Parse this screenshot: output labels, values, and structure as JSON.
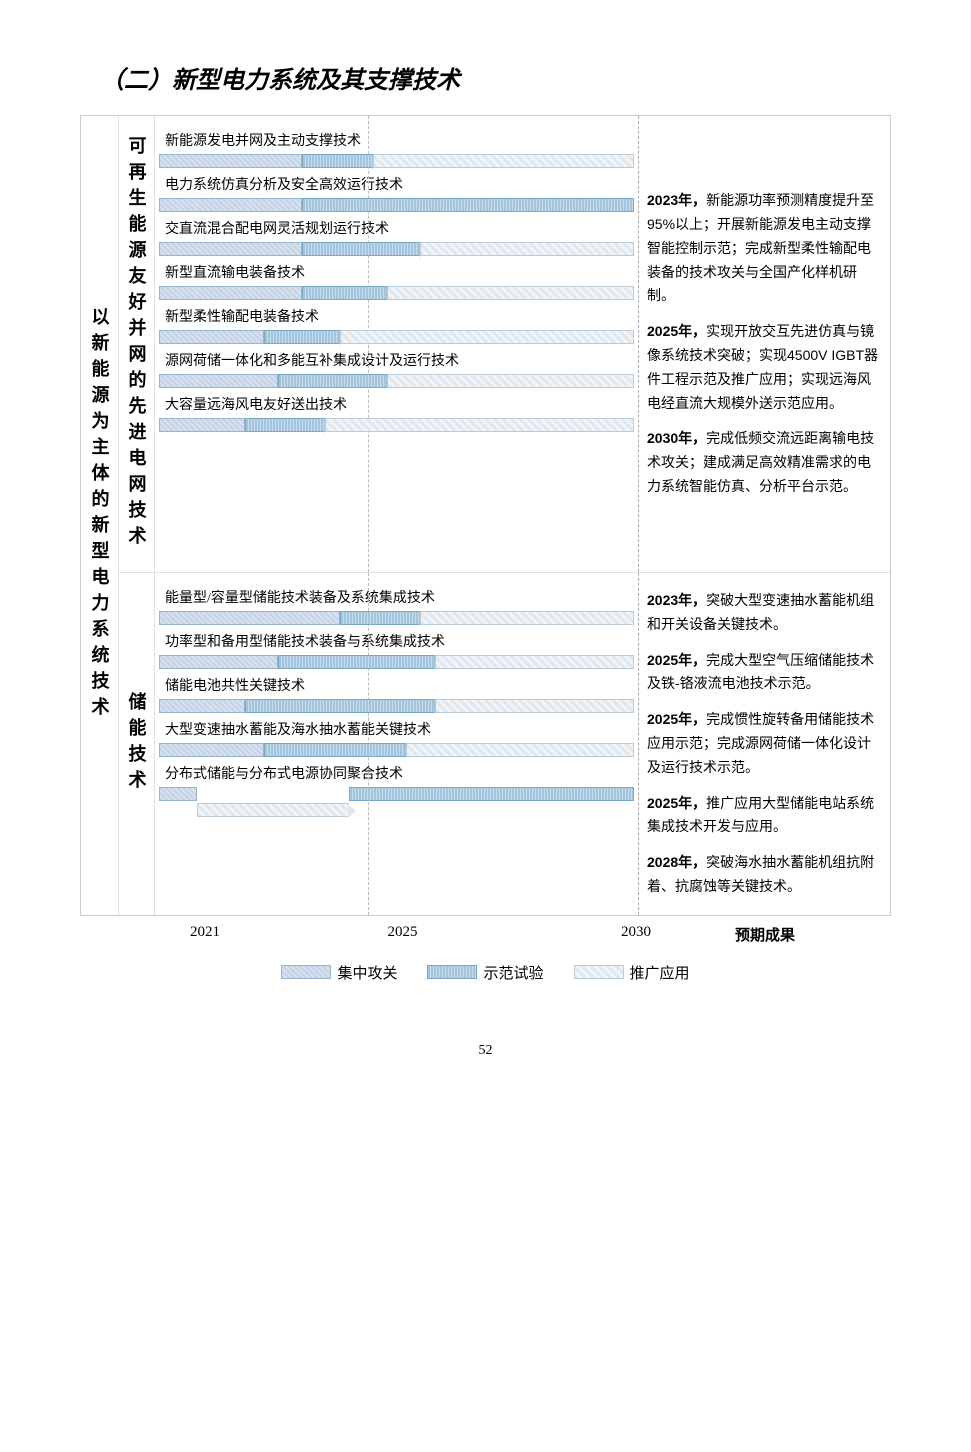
{
  "title": "（二）新型电力系统及其支撑技术",
  "main_category": "以新能源为主体的新型电力系统技术",
  "timeline": {
    "start": 2021,
    "mid": 2025,
    "end": 2030,
    "outcome_header": "预期成果"
  },
  "colors": {
    "phase1_fill": "#c4d4e6",
    "phase1_border": "#9ab4cc",
    "phase2_fill": "#a4c4dc",
    "phase2_border": "#7ca8c8",
    "phase3_fill": "#e0e8ee",
    "phase3_border": "#bcccd8",
    "grid": "#bbbbbb",
    "border": "#e0e0e0",
    "text": "#000000",
    "bg": "#ffffff"
  },
  "fonts": {
    "title_size": 24,
    "vlabel_size": 18,
    "tech_size": 14,
    "outcome_size": 14
  },
  "legend": {
    "phase1": "集中攻关",
    "phase2": "示范试验",
    "phase3": "推广应用"
  },
  "sections": [
    {
      "sub_category": "可再生能源友好并网的先进电网技术",
      "techs": [
        {
          "label": "新能源发电并网及主动支撑技术",
          "bars": [
            {
              "phase": 1,
              "start": 0,
              "end": 30
            },
            {
              "phase": 2,
              "start": 30,
              "end": 45,
              "arrow": true
            },
            {
              "phase": 3,
              "start": 45,
              "end": 100
            }
          ]
        },
        {
          "label": "电力系统仿真分析及安全高效运行技术",
          "bars": [
            {
              "phase": 1,
              "start": 0,
              "end": 30
            },
            {
              "phase": 2,
              "start": 30,
              "end": 100
            }
          ]
        },
        {
          "label": "交直流混合配电网灵活规划运行技术",
          "bars": [
            {
              "phase": 1,
              "start": 0,
              "end": 30
            },
            {
              "phase": 2,
              "start": 30,
              "end": 55,
              "arrow": true
            },
            {
              "phase": 3,
              "start": 55,
              "end": 100
            }
          ]
        },
        {
          "label": "新型直流输电装备技术",
          "bars": [
            {
              "phase": 1,
              "start": 0,
              "end": 30
            },
            {
              "phase": 2,
              "start": 30,
              "end": 48,
              "arrow": true
            },
            {
              "phase": 3,
              "start": 48,
              "end": 100
            }
          ]
        },
        {
          "label": "新型柔性输配电装备技术",
          "bars": [
            {
              "phase": 1,
              "start": 0,
              "end": 22
            },
            {
              "phase": 2,
              "start": 22,
              "end": 38,
              "arrow": true
            },
            {
              "phase": 3,
              "start": 38,
              "end": 100
            }
          ]
        },
        {
          "label": "源网荷储一体化和多能互补集成设计及运行技术",
          "bars": [
            {
              "phase": 1,
              "start": 0,
              "end": 25
            },
            {
              "phase": 2,
              "start": 25,
              "end": 48,
              "arrow": true
            },
            {
              "phase": 3,
              "start": 48,
              "end": 100
            }
          ]
        },
        {
          "label": "大容量远海风电友好送出技术",
          "bars": [
            {
              "phase": 1,
              "start": 0,
              "end": 18
            },
            {
              "phase": 2,
              "start": 18,
              "end": 35,
              "arrow": true
            },
            {
              "phase": 3,
              "start": 35,
              "end": 100
            }
          ]
        }
      ],
      "outcomes": [
        "2023年，新能源功率预测精度提升至95%以上；开展新能源发电主动支撑智能控制示范；完成新型柔性输配电装备的技术攻关与全国产化样机研制。",
        "2025年，实现开放交互先进仿真与镜像系统技术突破；实现4500V IGBT器件工程示范及推广应用；实现远海风电经直流大规模外送示范应用。",
        "2030年，完成低频交流远距离输电技术攻关；建成满足高效精准需求的电力系统智能仿真、分析平台示范。"
      ]
    },
    {
      "sub_category": "储能技术",
      "techs": [
        {
          "label": "能量型/容量型储能技术装备及系统集成技术",
          "bars": [
            {
              "phase": 1,
              "start": 0,
              "end": 38
            },
            {
              "phase": 2,
              "start": 38,
              "end": 55,
              "arrow": true
            },
            {
              "phase": 3,
              "start": 55,
              "end": 100
            }
          ]
        },
        {
          "label": "功率型和备用型储能技术装备与系统集成技术",
          "bars": [
            {
              "phase": 1,
              "start": 0,
              "end": 25
            },
            {
              "phase": 2,
              "start": 25,
              "end": 58,
              "arrow": true
            },
            {
              "phase": 3,
              "start": 58,
              "end": 100
            }
          ]
        },
        {
          "label": "储能电池共性关键技术",
          "bars": [
            {
              "phase": 1,
              "start": 0,
              "end": 18
            },
            {
              "phase": 2,
              "start": 18,
              "end": 58,
              "arrow": true
            },
            {
              "phase": 3,
              "start": 58,
              "end": 100
            }
          ]
        },
        {
          "label": "大型变速抽水蓄能及海水抽水蓄能关键技术",
          "bars": [
            {
              "phase": 1,
              "start": 0,
              "end": 22
            },
            {
              "phase": 2,
              "start": 22,
              "end": 52,
              "arrow": true
            },
            {
              "phase": 3,
              "start": 52,
              "end": 100
            }
          ]
        },
        {
          "label": "分布式储能与分布式电源协同聚合技术",
          "bars": [
            {
              "phase": 1,
              "start": 0,
              "end": 8
            },
            {
              "phase": 2,
              "start": 40,
              "end": 100
            },
            {
              "phase": 3,
              "start": 8,
              "end": 40,
              "arrow": true,
              "row": 2
            }
          ]
        }
      ],
      "outcomes": [
        "2023年，突破大型变速抽水蓄能机组和开关设备关键技术。",
        "2025年，完成大型空气压缩储能技术及铁-铬液流电池技术示范。",
        "2025年，完成惯性旋转备用储能技术应用示范；完成源网荷储一体化设计及运行技术示范。",
        "2025年，推广应用大型储能电站系统集成技术开发与应用。",
        "2028年，突破海水抽水蓄能机组抗附着、抗腐蚀等关键技术。"
      ]
    }
  ],
  "page_number": "52"
}
